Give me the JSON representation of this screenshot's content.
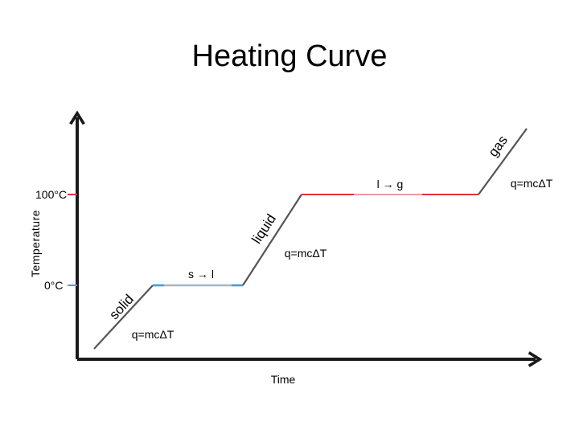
{
  "chart_data": {
    "type": "line",
    "title": "Heating Curve",
    "xlabel": "Time",
    "ylabel": "Temperature",
    "y_ticks": [
      {
        "label": "0°C",
        "value": 0,
        "color": "#4a9fd8"
      },
      {
        "label": "100°C",
        "value": 100,
        "color": "#e0303a"
      }
    ],
    "grid": false,
    "phase_labels": {
      "solid": "solid",
      "liquid": "liquid",
      "gas": "gas"
    },
    "transition_labels": {
      "melt": "s → l",
      "boil": "l → g"
    },
    "formula": "q=mcΔT"
  },
  "colors": {
    "axis": "#1a1a1a",
    "curve": "#555555",
    "solid_line": "#4a9fd8",
    "gas_line": "#e0303a"
  }
}
